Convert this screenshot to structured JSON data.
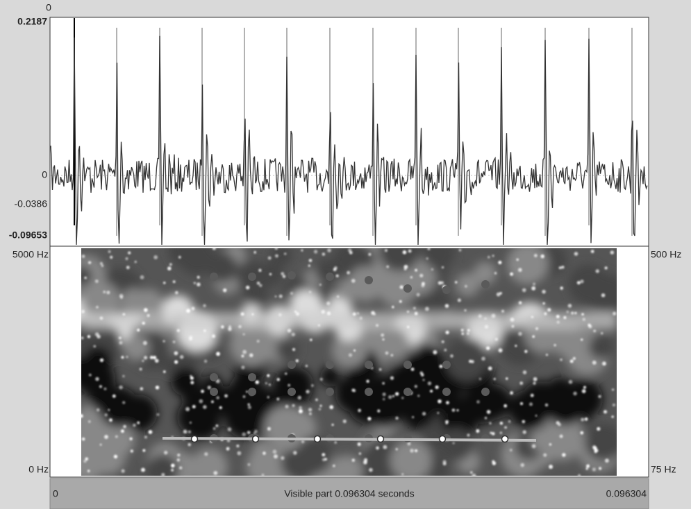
{
  "waveform": {
    "time_start": "0",
    "y_max": "0.2187",
    "y_zero": "0",
    "y_cursor": "-0.0386",
    "y_min": "-0.09653"
  },
  "spectrogram": {
    "freq_max": "5000 Hz",
    "freq_min": "0 Hz",
    "pitch_max": "500 Hz",
    "pitch_min": "75 Hz"
  },
  "status_bar": {
    "start": "0",
    "visible": "Visible part 0.096304 seconds",
    "end": "0.096304"
  }
}
